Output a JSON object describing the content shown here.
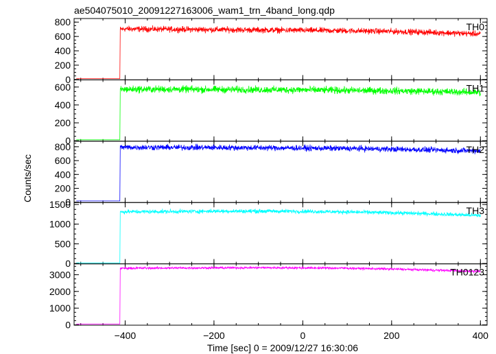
{
  "chart_data": {
    "type": "line",
    "title": "ae504075010_20091227163006_wam1_trn_4band_long.qdp",
    "xlabel": "Time [sec] 0 = 2009/12/27 16:30:06",
    "ylabel": "Counts/sec",
    "xlim": [
      -515,
      415
    ],
    "x_ticks": [
      "−400",
      "−200",
      "0",
      "200",
      "400"
    ],
    "x_tick_values": [
      -400,
      -200,
      0,
      200,
      400
    ],
    "grid": false,
    "panels": [
      {
        "name": "TH0",
        "color": "#ff0000",
        "ylim": [
          -5,
          850
        ],
        "y_ticks": [
          "0",
          "200",
          "400",
          "600",
          "800"
        ],
        "y_tick_values": [
          0,
          200,
          400,
          600,
          800
        ],
        "series": {
          "x": [
            -510,
            -412,
            -411,
            -400,
            -300,
            -200,
            -100,
            0,
            100,
            200,
            300,
            400
          ],
          "values": [
            12,
            12,
            700,
            705,
            700,
            695,
            690,
            685,
            680,
            670,
            655,
            635
          ],
          "noise": 40
        }
      },
      {
        "name": "TH1",
        "color": "#00ff00",
        "ylim": [
          -5,
          680
        ],
        "y_ticks": [
          "0",
          "200",
          "400",
          "600"
        ],
        "y_tick_values": [
          0,
          200,
          400,
          600
        ],
        "series": {
          "x": [
            -510,
            -412,
            -411,
            -400,
            -300,
            -200,
            -100,
            0,
            100,
            200,
            300,
            400
          ],
          "values": [
            10,
            10,
            570,
            575,
            575,
            572,
            570,
            568,
            562,
            558,
            550,
            540
          ],
          "noise": 38
        }
      },
      {
        "name": "TH2",
        "color": "#0000ff",
        "ylim": [
          -5,
          880
        ],
        "y_ticks": [
          "0",
          "200",
          "400",
          "600",
          "800"
        ],
        "y_tick_values": [
          0,
          200,
          400,
          600,
          800
        ],
        "series": {
          "x": [
            -510,
            -412,
            -411,
            -400,
            -300,
            -200,
            -100,
            0,
            100,
            200,
            300,
            400
          ],
          "values": [
            18,
            18,
            790,
            792,
            790,
            788,
            785,
            780,
            775,
            765,
            752,
            740
          ],
          "noise": 40
        }
      },
      {
        "name": "TH3",
        "color": "#00ffff",
        "ylim": [
          -10,
          1550
        ],
        "y_ticks": [
          "0",
          "500",
          "1000",
          "1500"
        ],
        "y_tick_values": [
          0,
          500,
          1000,
          1500
        ],
        "series": {
          "x": [
            -510,
            -412,
            -411,
            -400,
            -300,
            -200,
            -100,
            0,
            100,
            200,
            300,
            400
          ],
          "values": [
            15,
            15,
            1310,
            1315,
            1320,
            1330,
            1330,
            1325,
            1310,
            1290,
            1260,
            1220
          ],
          "noise": 50
        }
      },
      {
        "name": "TH0123",
        "color": "#ff00ff",
        "ylim": [
          -20,
          3650
        ],
        "y_ticks": [
          "0",
          "1000",
          "2000",
          "3000"
        ],
        "y_tick_values": [
          0,
          1000,
          2000,
          3000
        ],
        "series": {
          "x": [
            -510,
            -412,
            -411,
            -400,
            -300,
            -200,
            -100,
            0,
            100,
            200,
            300,
            400
          ],
          "values": [
            50,
            50,
            3380,
            3390,
            3400,
            3410,
            3420,
            3410,
            3390,
            3340,
            3270,
            3200
          ],
          "noise": 70
        }
      }
    ]
  }
}
